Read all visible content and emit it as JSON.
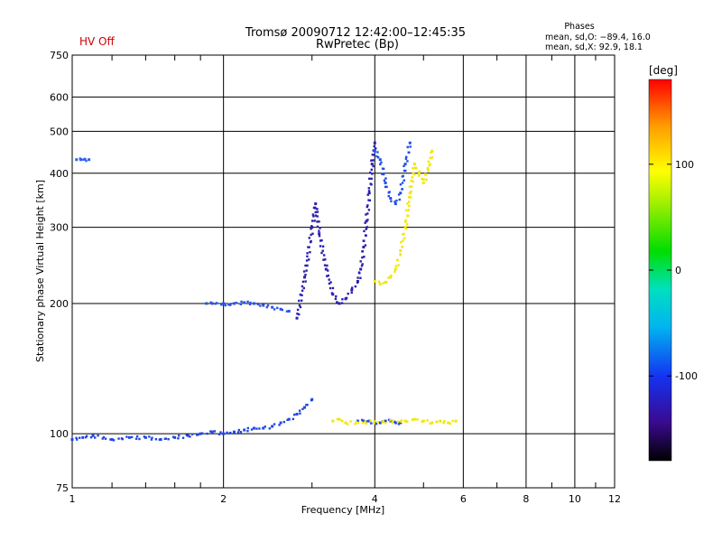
{
  "header": {
    "hv_status": "HV Off",
    "title_line1": "Tromsø 20090712 12:42:00–12:45:35",
    "title_line2": "RwPretec (Bp)",
    "phases_title": "Phases",
    "phases_o": "mean, sd,O: −89.4, 16.0",
    "phases_x": "mean, sd,X:  92.9, 18.1"
  },
  "colors": {
    "hv_text": "#cc0000",
    "o_trace": "#1a4fe0",
    "o_trace_dark": "#3b1fb3",
    "x_trace": "#f0e800",
    "grid": "#000000"
  },
  "chart_data": {
    "type": "scatter",
    "xlabel": "Frequency [MHz]",
    "ylabel": "Stationary phase Virtual Height [km]",
    "xscale": "log",
    "yscale": "log",
    "xlim": [
      1,
      12
    ],
    "ylim": [
      75,
      750
    ],
    "xticks": [
      1,
      2,
      4,
      6,
      8,
      10,
      12
    ],
    "xtick_labels": [
      "1",
      "2",
      "4",
      "6",
      "8",
      "10",
      "12"
    ],
    "x_minor_ticks": [
      1.2,
      1.4,
      1.6,
      1.8,
      3,
      5,
      7,
      9,
      11
    ],
    "yticks": [
      75,
      100,
      200,
      300,
      400,
      500,
      600,
      750
    ],
    "ytick_labels": [
      "75",
      "100",
      "200",
      "300",
      "400",
      "500",
      "600",
      "750"
    ],
    "grid": true,
    "colorbar": {
      "label": "[deg]",
      "range": [
        -180,
        180
      ],
      "ticks": [
        100,
        0,
        -100
      ],
      "tick_labels": [
        "100",
        "0",
        "-100"
      ]
    },
    "series": [
      {
        "color": "#2046e6",
        "x": [
          1.0,
          1.05,
          1.1,
          1.2,
          1.3,
          1.4,
          1.5,
          1.6,
          1.7,
          1.8,
          1.9,
          2.0,
          2.1,
          2.2,
          2.3,
          2.4,
          2.5,
          2.6,
          2.7,
          2.8,
          2.9,
          3.0
        ],
        "y": [
          97,
          98,
          99,
          97,
          98,
          98,
          97,
          98,
          99,
          100,
          101,
          100,
          101,
          102,
          103,
          103,
          104,
          106,
          108,
          111,
          115,
          120
        ]
      },
      {
        "color": "#2a52e8",
        "x": [
          1.85,
          1.9,
          2.0,
          2.05,
          2.1,
          2.2,
          2.3,
          2.4,
          2.5,
          2.6,
          2.7
        ],
        "y": [
          200,
          200,
          200,
          199,
          200,
          201,
          200,
          198,
          196,
          194,
          192
        ]
      },
      {
        "color": "#2c1fb0",
        "x": [
          2.8,
          2.9,
          3.0,
          3.05,
          3.1,
          3.2,
          3.3,
          3.4,
          3.5,
          3.6,
          3.7,
          3.75,
          3.8,
          3.85,
          3.9,
          3.95,
          4.0
        ],
        "y": [
          185,
          230,
          300,
          340,
          290,
          240,
          210,
          200,
          205,
          215,
          225,
          240,
          270,
          310,
          360,
          420,
          470
        ]
      },
      {
        "color": "#1f4ee8",
        "x": [
          4.0,
          4.1,
          4.2,
          4.3,
          4.4,
          4.5,
          4.6,
          4.7
        ],
        "y": [
          450,
          430,
          380,
          350,
          340,
          360,
          420,
          470
        ]
      },
      {
        "color": "#f2e600",
        "x": [
          4.0,
          4.1,
          4.2,
          4.3,
          4.4,
          4.5,
          4.6,
          4.7,
          4.8,
          4.9,
          5.0,
          5.1,
          5.2
        ],
        "y": [
          225,
          222,
          224,
          230,
          240,
          265,
          300,
          360,
          420,
          400,
          380,
          410,
          450
        ]
      },
      {
        "color": "#2046e6",
        "x": [
          3.7,
          3.8,
          3.9,
          4.0,
          4.1,
          4.2,
          4.3,
          4.4,
          4.5
        ],
        "y": [
          107,
          107,
          107,
          106,
          106,
          107,
          107,
          106,
          106
        ]
      },
      {
        "color": "#f2e600",
        "x": [
          3.3,
          3.4,
          3.5,
          4.6,
          4.8,
          5.0,
          5.2,
          5.4,
          5.6,
          5.8
        ],
        "y": [
          107,
          108,
          106,
          107,
          108,
          107,
          106,
          107,
          106,
          107
        ]
      },
      {
        "color": "#2f5fea",
        "x": [
          1.02,
          1.04,
          1.06,
          1.08
        ],
        "y": [
          430,
          430,
          431,
          430
        ]
      }
    ]
  }
}
